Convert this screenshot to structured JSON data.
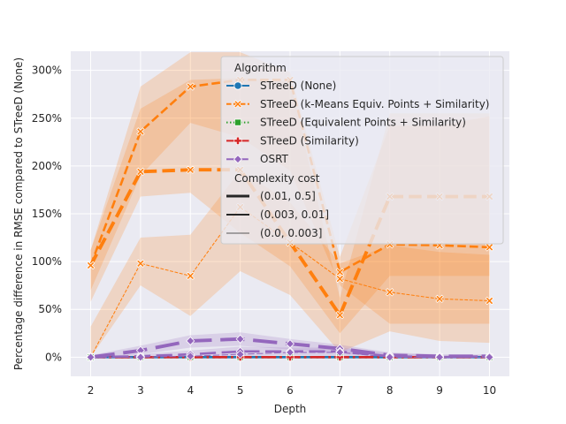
{
  "chart_data": {
    "type": "line",
    "title": "",
    "xlabel": "Depth",
    "ylabel": "Percentage difference in RMSE compared to STreeD (None)",
    "x": [
      2,
      3,
      4,
      5,
      6,
      7,
      8,
      9,
      10
    ],
    "x_ticks": [
      "2",
      "3",
      "4",
      "5",
      "6",
      "7",
      "8",
      "9",
      "10"
    ],
    "ylim": [
      -0.2,
      3.2
    ],
    "y_ticks": [
      {
        "value": 0,
        "label": "0%"
      },
      {
        "value": 0.5,
        "label": "50%"
      },
      {
        "value": 1.0,
        "label": "100%"
      },
      {
        "value": 1.5,
        "label": "150%"
      },
      {
        "value": 2.0,
        "label": "200%"
      },
      {
        "value": 2.5,
        "label": "250%"
      },
      {
        "value": 3.0,
        "label": "300%"
      }
    ],
    "grid": true,
    "legend_placement": "top-right",
    "legend": {
      "title": "Algorithm",
      "entries": [
        {
          "label": "STreeD (None)",
          "color": "#1f77b4",
          "marker": "circle",
          "dash": "solid"
        },
        {
          "label": "STreeD (k-Means Equiv. Points + Similarity)",
          "color": "#ff7f0e",
          "marker": "x",
          "dash": "dashed"
        },
        {
          "label": "STreeD (Equivalent Points + Similarity)",
          "color": "#2ca02c",
          "marker": "square",
          "dash": "dotted"
        },
        {
          "label": "STreeD (Similarity)",
          "color": "#d62728",
          "marker": "plus",
          "dash": "dashdot"
        },
        {
          "label": "OSRT",
          "color": "#9467bd",
          "marker": "diamond",
          "dash": "longdash"
        }
      ],
      "size_title": "Complexity cost",
      "size_entries": [
        {
          "label": "(0.01, 0.5]",
          "width": 3
        },
        {
          "label": "(0.003, 0.01]",
          "width": 2
        },
        {
          "label": "(0.0, 0.003]",
          "width": 0.8
        }
      ]
    },
    "series": [
      {
        "algorithm": "STreeD (k-Means Equiv. Points + Similarity)",
        "complexity": "(0.01, 0.5]",
        "color": "#ff7f0e",
        "dash": "dashed",
        "marker": "x",
        "width": 3,
        "x": [
          2,
          3,
          4,
          5,
          6,
          7,
          8,
          9,
          10
        ],
        "values": [
          0.96,
          1.94,
          1.96,
          1.96,
          1.2,
          0.44,
          1.68,
          1.68,
          1.68
        ],
        "band_lower": [
          0.58,
          1.68,
          1.72,
          1.3,
          0.95,
          0.25,
          0.85,
          0.85,
          0.85
        ],
        "band_upper": [
          1.12,
          2.6,
          2.9,
          2.92,
          2.88,
          0.62,
          2.55,
          2.55,
          2.55
        ]
      },
      {
        "algorithm": "STreeD (k-Means Equiv. Points + Similarity)",
        "complexity": "(0.003, 0.01]",
        "color": "#ff7f0e",
        "dash": "dashed",
        "marker": "x",
        "width": 2,
        "x": [
          2,
          3,
          4,
          5,
          6,
          7,
          8,
          9,
          10
        ],
        "values": [
          0.96,
          2.36,
          2.83,
          2.9,
          2.9,
          0.89,
          1.18,
          1.17,
          1.15
        ],
        "band_lower": [
          0.7,
          1.9,
          2.45,
          2.3,
          1.95,
          0.75,
          0.35,
          0.35,
          0.35
        ],
        "band_upper": [
          1.12,
          2.83,
          3.19,
          3.19,
          2.98,
          1.05,
          2.42,
          2.42,
          2.52
        ]
      },
      {
        "algorithm": "STreeD (k-Means Equiv. Points + Similarity)",
        "complexity": "(0.0, 0.003]",
        "color": "#ff7f0e",
        "dash": "dashed",
        "marker": "x",
        "width": 0.8,
        "x": [
          2,
          3,
          4,
          5,
          6,
          7,
          8,
          9,
          10
        ],
        "values": [
          0.0,
          0.98,
          0.85,
          1.57,
          1.2,
          0.82,
          0.68,
          0.61,
          0.59
        ],
        "band_lower": [
          0.0,
          0.75,
          0.43,
          0.9,
          0.65,
          0.05,
          0.27,
          0.17,
          0.15
        ],
        "band_upper": [
          0.32,
          1.25,
          1.28,
          1.95,
          1.62,
          0.98,
          1.17,
          1.1,
          1.07
        ]
      },
      {
        "algorithm": "STreeD (None)",
        "complexity": "(0.003, 0.01]",
        "color": "#1f77b4",
        "dash": "solid",
        "marker": "circle",
        "width": 2,
        "x": [
          2,
          3,
          4,
          5,
          6,
          7,
          8,
          9,
          10
        ],
        "values": [
          0,
          0,
          0,
          0,
          0,
          0,
          0,
          0,
          0
        ]
      },
      {
        "algorithm": "STreeD (Equivalent Points + Similarity)",
        "complexity": "(0.003, 0.01]",
        "color": "#2ca02c",
        "dash": "dotted",
        "marker": "square",
        "width": 2,
        "x": [
          2,
          3,
          4,
          5,
          6,
          7,
          8,
          9,
          10
        ],
        "values": [
          0,
          0,
          0,
          0,
          0,
          0,
          0,
          0,
          0
        ]
      },
      {
        "algorithm": "STreeD (Similarity)",
        "complexity": "(0.003, 0.01]",
        "color": "#d62728",
        "dash": "dashdot",
        "marker": "plus",
        "width": 2,
        "x": [
          2,
          3,
          4,
          5,
          6,
          7,
          8,
          9,
          10
        ],
        "values": [
          0,
          0,
          0,
          0,
          0,
          0,
          0,
          0,
          0
        ]
      },
      {
        "algorithm": "OSRT",
        "complexity": "(0.01, 0.5]",
        "color": "#9467bd",
        "dash": "longdash",
        "marker": "diamond",
        "width": 3,
        "x": [
          2,
          3,
          4,
          5,
          6,
          7,
          8,
          9,
          10
        ],
        "values": [
          0.0,
          0.07,
          0.17,
          0.19,
          0.14,
          0.09,
          0.02,
          0.01,
          0.01
        ],
        "band_lower": [
          0.0,
          0.03,
          0.1,
          0.12,
          0.08,
          0.04,
          0.0,
          -0.01,
          0.0
        ],
        "band_upper": [
          0.02,
          0.12,
          0.23,
          0.26,
          0.19,
          0.13,
          0.05,
          0.03,
          0.03
        ]
      },
      {
        "algorithm": "OSRT",
        "complexity": "(0.003, 0.01]",
        "color": "#9467bd",
        "dash": "longdash",
        "marker": "diamond",
        "width": 2,
        "x": [
          2,
          3,
          4,
          5,
          6,
          7,
          8,
          9,
          10
        ],
        "values": [
          0.0,
          0.01,
          0.03,
          0.06,
          0.06,
          0.06,
          0.01,
          0.0,
          0.01
        ],
        "band_lower": [
          0.0,
          0.0,
          0.0,
          0.01,
          0.02,
          0.01,
          -0.01,
          -0.01,
          0.0
        ],
        "band_upper": [
          0.01,
          0.03,
          0.07,
          0.11,
          0.1,
          0.1,
          0.04,
          0.02,
          0.02
        ]
      },
      {
        "algorithm": "OSRT",
        "complexity": "(0.0, 0.003]",
        "color": "#9467bd",
        "dash": "longdash",
        "marker": "diamond",
        "width": 0.8,
        "x": [
          2,
          3,
          4,
          5,
          6,
          7,
          8,
          9,
          10
        ],
        "values": [
          0.0,
          0.0,
          0.01,
          0.03,
          0.05,
          0.05,
          0.0,
          0.0,
          0.0
        ]
      }
    ]
  }
}
